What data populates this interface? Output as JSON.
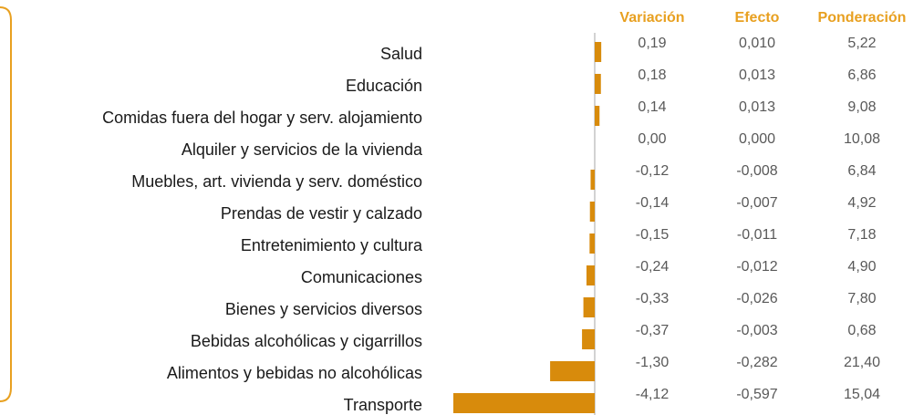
{
  "chart_data": {
    "type": "bar",
    "orientation": "horizontal",
    "categories": [
      "Salud",
      "Educación",
      "Comidas fuera del hogar y serv. alojamiento",
      "Alquiler y servicios de la vivienda",
      "Muebles, art. vivienda y serv. doméstico",
      "Prendas de vestir y calzado",
      "Entretenimiento y cultura",
      "Comunicaciones",
      "Bienes y servicios diversos",
      "Bebidas alcohólicas y cigarrillos",
      "Alimentos y bebidas no alcohólicas",
      "Transporte"
    ],
    "series": [
      {
        "name": "Variación",
        "color": "#d88b0c",
        "values": [
          0.19,
          0.18,
          0.14,
          0.0,
          -0.12,
          -0.14,
          -0.15,
          -0.24,
          -0.33,
          -0.37,
          -1.3,
          -4.12
        ],
        "value_labels": [
          "0,19",
          "0,18",
          "0,14",
          "0,00",
          "-0,12",
          "-0,14",
          "-0,15",
          "-0,24",
          "-0,33",
          "-0,37",
          "-1,30",
          "-4,12"
        ]
      }
    ],
    "columns": [
      {
        "name": "Efecto",
        "values": [
          0.01,
          0.013,
          0.013,
          0.0,
          -0.008,
          -0.007,
          -0.011,
          -0.012,
          -0.026,
          -0.003,
          -0.282,
          -0.597
        ],
        "value_labels": [
          "0,010",
          "0,013",
          "0,013",
          "0,000",
          "-0,008",
          "-0,007",
          "-0,011",
          "-0,012",
          "-0,026",
          "-0,003",
          "-0,282",
          "-0,597"
        ]
      },
      {
        "name": "Ponderación",
        "values": [
          5.22,
          6.86,
          9.08,
          10.08,
          6.84,
          4.92,
          7.18,
          4.9,
          7.8,
          0.68,
          21.4,
          15.04
        ],
        "value_labels": [
          "5,22",
          "6,86",
          "9,08",
          "10,08",
          "6,84",
          "4,92",
          "7,18",
          "4,90",
          "7,80",
          "0,68",
          "21,40",
          "15,04"
        ]
      }
    ]
  }
}
